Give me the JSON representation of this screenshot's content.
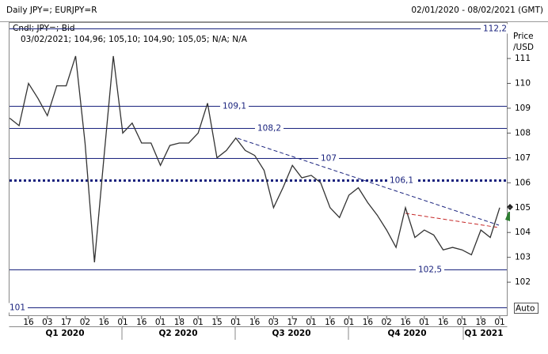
{
  "header": {
    "title": "Daily JPY=; EURJPY=R",
    "range": "02/01/2020 - 08/02/2021 (GMT)"
  },
  "chart_data": {
    "type": "line",
    "legend": "Cndl; JPY=; Bid",
    "info": "03/02/2021; 104,96; 105,10; 104,90; 105,05; N/A; N/A",
    "y_axis_label": [
      "Price",
      "/USD"
    ],
    "scale_button": "Auto",
    "categories": [
      null,
      null,
      "16",
      null,
      "03",
      null,
      "17",
      null,
      "02",
      null,
      "16",
      null,
      "01",
      null,
      "16",
      null,
      "01",
      null,
      "18",
      null,
      "01",
      null,
      "15",
      null,
      "01",
      null,
      "16",
      null,
      "03",
      null,
      "17",
      null,
      "01",
      null,
      "16",
      null,
      "01",
      null,
      "16",
      null,
      "02",
      null,
      "16",
      null,
      "01",
      null,
      "16",
      null,
      "01",
      null,
      "18",
      null,
      "01"
    ],
    "quarters": [
      "Q1 2020",
      "Q2 2020",
      "Q3 2020",
      "Q4 2020",
      "Q1 2021"
    ],
    "series": [
      {
        "name": "JPY=",
        "color": "#333333",
        "values": [
          108.6,
          108.3,
          110.0,
          109.4,
          108.7,
          109.9,
          109.9,
          111.1,
          107.6,
          102.8,
          107.0,
          111.1,
          108.0,
          108.4,
          107.6,
          107.6,
          106.7,
          107.5,
          107.6,
          107.6,
          108.0,
          109.2,
          107.0,
          107.3,
          107.8,
          107.3,
          107.1,
          106.5,
          105.0,
          105.8,
          106.7,
          106.2,
          106.3,
          106.0,
          105.0,
          104.6,
          105.5,
          105.8,
          105.2,
          104.7,
          104.1,
          103.4,
          105.0,
          103.8,
          104.1,
          103.9,
          103.3,
          103.4,
          103.3,
          103.1,
          104.1,
          103.8,
          105.0
        ]
      }
    ],
    "levels": [
      {
        "value": 112.2,
        "label": "112,2"
      },
      {
        "value": 109.1,
        "label": "109,1"
      },
      {
        "value": 108.2,
        "label": "108,2"
      },
      {
        "value": 107,
        "label": "107"
      },
      {
        "value": 106.1,
        "label": "106,1",
        "dotted": true
      },
      {
        "value": 102.5,
        "label": "102,5"
      },
      {
        "value": 101,
        "label": "101"
      }
    ],
    "ylim": [
      100.7,
      112.4
    ],
    "yticks": [
      102,
      103,
      104,
      105,
      106,
      107,
      108,
      109,
      110,
      111
    ]
  }
}
